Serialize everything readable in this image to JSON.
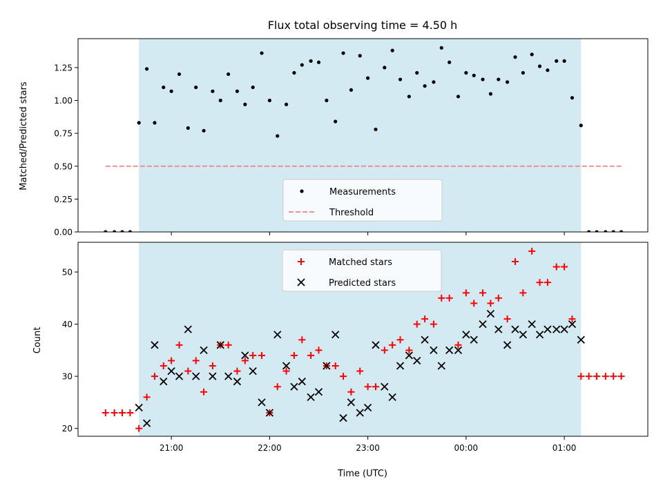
{
  "chart_data": [
    {
      "type": "scatter",
      "title": "Flux total observing time = 4.50 h",
      "xlabel": "",
      "ylabel": "Matched/Predicted stars",
      "ylim": [
        0,
        1.47
      ],
      "yticks": [
        "0.00",
        "0.25",
        "0.50",
        "0.75",
        "1.00",
        "1.25"
      ],
      "ytick_values": [
        0,
        0.25,
        0.5,
        0.75,
        1.0,
        1.25
      ],
      "xtick_values": [
        21.0,
        22.0,
        23.0,
        24.0,
        25.0
      ],
      "xlim": [
        20.05,
        25.85
      ],
      "shaded_interval": [
        20.67,
        25.17
      ],
      "shade_color": "#add8e6",
      "legend": {
        "placement": "lower-center",
        "entries": [
          "Measurements",
          "Threshold"
        ]
      },
      "series": [
        {
          "name": "Measurements",
          "marker": "dot",
          "color": "#000000",
          "x": [
            20.33,
            20.42,
            20.5,
            20.58,
            20.67,
            20.75,
            20.83,
            20.92,
            21.0,
            21.08,
            21.17,
            21.25,
            21.33,
            21.42,
            21.5,
            21.58,
            21.67,
            21.75,
            21.83,
            21.92,
            22.0,
            22.08,
            22.17,
            22.25,
            22.33,
            22.42,
            22.5,
            22.58,
            22.67,
            22.75,
            22.83,
            22.92,
            23.0,
            23.08,
            23.17,
            23.25,
            23.33,
            23.42,
            23.5,
            23.58,
            23.67,
            23.75,
            23.83,
            23.92,
            24.0,
            24.08,
            24.17,
            24.25,
            24.33,
            24.42,
            24.5,
            24.58,
            24.67,
            24.75,
            24.83,
            24.92,
            25.0,
            25.08,
            25.17,
            25.25,
            25.33,
            25.42,
            25.5,
            25.58
          ],
          "y": [
            0,
            0,
            0,
            0,
            0.83,
            1.24,
            0.83,
            1.1,
            1.07,
            1.2,
            0.79,
            1.1,
            0.77,
            1.07,
            1.0,
            1.2,
            1.07,
            0.97,
            1.1,
            1.36,
            1.0,
            0.73,
            0.97,
            1.21,
            1.27,
            1.3,
            1.29,
            1.0,
            0.84,
            1.36,
            1.08,
            1.34,
            1.17,
            0.78,
            1.25,
            1.38,
            1.16,
            1.03,
            1.21,
            1.11,
            1.14,
            1.4,
            1.29,
            1.03,
            1.21,
            1.19,
            1.16,
            1.05,
            1.16,
            1.14,
            1.33,
            1.21,
            1.35,
            1.26,
            1.23,
            1.3,
            1.3,
            1.02,
            0.81,
            0,
            0,
            0,
            0,
            0
          ]
        },
        {
          "name": "Threshold",
          "marker": "dashed-line",
          "color": "#f08080",
          "x": [
            20.33,
            25.58
          ],
          "y": [
            0.5,
            0.5
          ]
        }
      ]
    },
    {
      "type": "scatter",
      "title": "",
      "xlabel": "Time (UTC)",
      "ylabel": "Count",
      "ylim": [
        18.5,
        55.7
      ],
      "yticks": [
        "20",
        "30",
        "40",
        "50"
      ],
      "ytick_values": [
        20,
        30,
        40,
        50
      ],
      "xtick_values": [
        21.0,
        22.0,
        23.0,
        24.0,
        25.0
      ],
      "xticks": [
        "21:00",
        "22:00",
        "23:00",
        "00:00",
        "01:00"
      ],
      "xlim": [
        20.05,
        25.85
      ],
      "shaded_interval": [
        20.67,
        25.17
      ],
      "shade_color": "#add8e6",
      "legend": {
        "placement": "upper-center",
        "entries": [
          "Matched stars",
          "Predicted stars"
        ]
      },
      "series": [
        {
          "name": "Matched stars",
          "marker": "plus",
          "color": "#ff0000",
          "x": [
            20.33,
            20.42,
            20.5,
            20.58,
            20.67,
            20.75,
            20.83,
            20.92,
            21.0,
            21.08,
            21.17,
            21.25,
            21.33,
            21.42,
            21.5,
            21.58,
            21.67,
            21.75,
            21.83,
            21.92,
            22.0,
            22.08,
            22.17,
            22.25,
            22.33,
            22.42,
            22.5,
            22.58,
            22.67,
            22.75,
            22.83,
            22.92,
            23.0,
            23.08,
            23.17,
            23.25,
            23.33,
            23.42,
            23.5,
            23.58,
            23.67,
            23.75,
            23.83,
            23.92,
            24.0,
            24.08,
            24.17,
            24.25,
            24.33,
            24.42,
            24.5,
            24.58,
            24.67,
            24.75,
            24.83,
            24.92,
            25.0,
            25.08,
            25.17,
            25.25,
            25.33,
            25.42,
            25.5,
            25.58
          ],
          "y": [
            23,
            23,
            23,
            23,
            20,
            26,
            30,
            32,
            33,
            36,
            31,
            33,
            27,
            32,
            36,
            36,
            31,
            33,
            34,
            34,
            23,
            28,
            31,
            34,
            37,
            34,
            35,
            32,
            32,
            30,
            27,
            31,
            28,
            28,
            35,
            36,
            37,
            35,
            40,
            41,
            40,
            45,
            45,
            36,
            46,
            44,
            46,
            44,
            45,
            41,
            52,
            46,
            54,
            48,
            48,
            51,
            51,
            41,
            30,
            30,
            30,
            30,
            30,
            30
          ]
        },
        {
          "name": "Predicted stars",
          "marker": "x",
          "color": "#000000",
          "x": [
            20.67,
            20.75,
            20.83,
            20.92,
            21.0,
            21.08,
            21.17,
            21.25,
            21.33,
            21.42,
            21.5,
            21.58,
            21.67,
            21.75,
            21.83,
            21.92,
            22.0,
            22.08,
            22.17,
            22.25,
            22.33,
            22.42,
            22.5,
            22.58,
            22.67,
            22.75,
            22.83,
            22.92,
            23.0,
            23.08,
            23.17,
            23.25,
            23.33,
            23.42,
            23.5,
            23.58,
            23.67,
            23.75,
            23.83,
            23.92,
            24.0,
            24.08,
            24.17,
            24.25,
            24.33,
            24.42,
            24.5,
            24.58,
            24.67,
            24.75,
            24.83,
            24.92,
            25.0,
            25.08,
            25.17
          ],
          "y": [
            24,
            21,
            36,
            29,
            31,
            30,
            39,
            30,
            35,
            30,
            36,
            30,
            29,
            34,
            31,
            25,
            23,
            38,
            32,
            28,
            29,
            26,
            27,
            32,
            38,
            22,
            25,
            23,
            24,
            36,
            28,
            26,
            32,
            34,
            33,
            37,
            35,
            32,
            35,
            35,
            38,
            37,
            40,
            42,
            39,
            36,
            39,
            38,
            40,
            38,
            39,
            39,
            39,
            40,
            37
          ]
        }
      ]
    }
  ]
}
